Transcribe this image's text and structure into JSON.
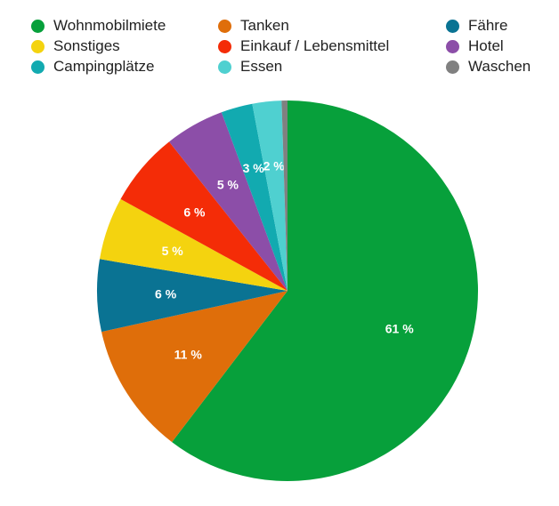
{
  "chart_data": {
    "type": "pie",
    "categories": [
      "Wohnmobilmiete",
      "Tanken",
      "Fähre",
      "Sonstiges",
      "Einkauf / Lebensmittel",
      "Hotel",
      "Campingplätze",
      "Essen",
      "Waschen"
    ],
    "values": [
      61.1,
      11.3,
      6.2,
      5.4,
      6.4,
      5.1,
      2.7,
      2.5,
      0.5
    ],
    "labels": [
      "61 %",
      "11 %",
      "6 %",
      "5 %",
      "6 %",
      "5 %",
      "3 %",
      "2 %",
      ""
    ],
    "colors": [
      "#07a03b",
      "#df6e0a",
      "#0a7393",
      "#f4d30f",
      "#f42c07",
      "#8c4ea8",
      "#12aab0",
      "#4fd0d0",
      "#808080"
    ],
    "legend_placement": "top"
  }
}
